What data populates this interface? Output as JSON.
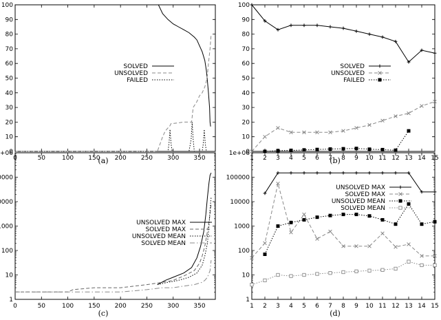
{
  "chart_data": [
    {
      "id": "a",
      "type": "line",
      "caption": "(a)",
      "xticks": [
        "0",
        "50",
        "100",
        "150",
        "200",
        "250",
        "300",
        "350"
      ],
      "yticks": [
        "0",
        "10",
        "20",
        "30",
        "40",
        "50",
        "60",
        "70",
        "80",
        "90",
        "100"
      ],
      "xlim": [
        0,
        380
      ],
      "ylim": [
        0,
        100
      ],
      "yscale": "linear",
      "legend_position": "center-right",
      "series": [
        {
          "name": "SOLVED",
          "style": "solid",
          "color": "#000000",
          "x": [
            0,
            100,
            200,
            272,
            280,
            290,
            300,
            310,
            320,
            330,
            340,
            345,
            350,
            355,
            360,
            363,
            365,
            367,
            369,
            370,
            371
          ],
          "y": [
            100,
            100,
            100,
            100,
            94,
            90,
            87,
            85,
            83,
            81,
            78,
            76,
            72,
            68,
            62,
            55,
            48,
            40,
            30,
            20,
            17
          ]
        },
        {
          "name": "UNSOLVED",
          "style": "dashed",
          "color": "#888888",
          "x": [
            0,
            200,
            270,
            272,
            275,
            280,
            285,
            290,
            293,
            296,
            300,
            320,
            335,
            338,
            345,
            350,
            355,
            360,
            363,
            365,
            367,
            370,
            372
          ],
          "y": [
            0,
            0,
            0,
            2,
            5,
            10,
            14,
            16,
            17,
            19,
            19,
            20,
            20,
            30,
            34,
            38,
            40,
            44,
            48,
            52,
            60,
            70,
            80
          ]
        },
        {
          "name": "FAILED",
          "style": "dotted",
          "color": "#000000",
          "x": [
            0,
            290,
            292,
            294,
            296,
            298,
            330,
            334,
            336,
            338,
            340,
            355,
            357,
            359,
            361,
            363,
            380
          ],
          "y": [
            0,
            0,
            5,
            15,
            5,
            0,
            0,
            8,
            20,
            8,
            0,
            0,
            5,
            15,
            5,
            0,
            0
          ]
        }
      ]
    },
    {
      "id": "b",
      "type": "line",
      "caption": "(b)",
      "xticks": [
        "1",
        "2",
        "3",
        "4",
        "5",
        "6",
        "7",
        "8",
        "9",
        "10",
        "11",
        "12",
        "13",
        "14",
        "15"
      ],
      "yticks": [
        "0",
        "10",
        "20",
        "30",
        "40",
        "50",
        "60",
        "70",
        "80",
        "90",
        "100"
      ],
      "xlim": [
        1,
        15
      ],
      "ylim": [
        0,
        100
      ],
      "yscale": "linear",
      "legend_position": "center-right",
      "series": [
        {
          "name": "SOLVED",
          "style": "solid",
          "color": "#000000",
          "marker": "plus",
          "x": [
            1,
            2,
            3,
            4,
            5,
            6,
            7,
            8,
            9,
            10,
            11,
            12,
            13,
            14,
            15
          ],
          "y": [
            100,
            89,
            83,
            86,
            86,
            86,
            85,
            84,
            82,
            80,
            78,
            75,
            61,
            69,
            67
          ]
        },
        {
          "name": "UNSOLVED",
          "style": "dashed",
          "color": "#888888",
          "marker": "x",
          "x": [
            1,
            2,
            3,
            4,
            5,
            6,
            7,
            8,
            9,
            10,
            11,
            12,
            13,
            14,
            15
          ],
          "y": [
            0,
            10,
            16,
            13,
            13,
            13,
            13,
            14,
            16,
            18,
            21,
            24,
            26,
            31,
            34
          ]
        },
        {
          "name": "FAILED",
          "style": "dotted",
          "color": "#000000",
          "marker": "square",
          "x": [
            2,
            3,
            4,
            5,
            6,
            7,
            8,
            9,
            10,
            11,
            12,
            13
          ],
          "y": [
            0,
            0.5,
            0.7,
            1,
            1.3,
            1.6,
            1.8,
            2,
            1.5,
            1.2,
            0.8,
            14
          ]
        }
      ]
    },
    {
      "id": "c",
      "type": "line",
      "caption": "(c)",
      "xticks": [
        "0",
        "50",
        "100",
        "150",
        "200",
        "250",
        "300",
        "350"
      ],
      "yticks": [
        "1",
        "10",
        "100",
        "1000",
        "10000",
        "100000",
        "1e+06"
      ],
      "xlim": [
        0,
        380
      ],
      "ylim": [
        1,
        1000000
      ],
      "yscale": "log",
      "legend_position": "center-right",
      "series": [
        {
          "name": "UNSOLVED MAX",
          "style": "solid",
          "color": "#000000",
          "x": [
            270,
            285,
            300,
            320,
            335,
            345,
            352,
            358,
            362,
            365,
            368,
            370,
            372
          ],
          "y": [
            4,
            6,
            8,
            12,
            20,
            50,
            150,
            600,
            3000,
            15000,
            60000,
            120000,
            150000
          ]
        },
        {
          "name": "SOLVED MAX",
          "style": "dashed",
          "color": "#666666",
          "x": [
            0,
            100,
            110,
            150,
            200,
            250,
            280,
            300,
            320,
            340,
            350,
            355,
            360,
            365,
            370,
            372
          ],
          "y": [
            2,
            2,
            2.5,
            3,
            3,
            4,
            5,
            6,
            9,
            15,
            30,
            60,
            150,
            600,
            3000,
            8000
          ]
        },
        {
          "name": "UNSOLVED MEAN",
          "style": "dotted",
          "color": "#000000",
          "x": [
            270,
            290,
            310,
            330,
            345,
            355,
            360,
            365,
            368,
            370,
            372
          ],
          "y": [
            4,
            5,
            6,
            8,
            12,
            25,
            60,
            200,
            1000,
            5000,
            15000
          ]
        },
        {
          "name": "SOLVED MEAN",
          "style": "dashdot",
          "color": "#888888",
          "x": [
            0,
            100,
            150,
            200,
            250,
            280,
            300,
            320,
            340,
            355,
            360,
            365,
            370,
            372
          ],
          "y": [
            2,
            2,
            2,
            2,
            2.5,
            3,
            3,
            3.5,
            4,
            5,
            6,
            8,
            15,
            40
          ]
        }
      ]
    },
    {
      "id": "d",
      "type": "line",
      "caption": "(d)",
      "xticks": [
        "1",
        "2",
        "3",
        "4",
        "5",
        "6",
        "7",
        "8",
        "9",
        "10",
        "11",
        "12",
        "13",
        "14",
        "15"
      ],
      "yticks": [
        "1",
        "10",
        "100",
        "1000",
        "10000",
        "100000",
        "1e+06"
      ],
      "xlim": [
        1,
        15
      ],
      "ylim": [
        1,
        1000000
      ],
      "yscale": "log",
      "legend_position": "top-right",
      "series": [
        {
          "name": "UNSOLVED MAX",
          "style": "solid",
          "color": "#000000",
          "marker": "plus",
          "x": [
            2,
            3,
            4,
            5,
            6,
            7,
            8,
            9,
            10,
            11,
            12,
            13,
            14,
            15
          ],
          "y": [
            22000,
            150000,
            150000,
            150000,
            150000,
            150000,
            150000,
            150000,
            150000,
            150000,
            150000,
            150000,
            25000,
            25000
          ]
        },
        {
          "name": "SOLVED MAX",
          "style": "dashed",
          "color": "#888888",
          "marker": "x",
          "x": [
            1,
            2,
            3,
            4,
            5,
            6,
            7,
            8,
            9,
            10,
            11,
            12,
            13,
            14,
            15
          ],
          "y": [
            50,
            200,
            55000,
            550,
            3000,
            300,
            600,
            150,
            150,
            150,
            500,
            140,
            180,
            60,
            60
          ]
        },
        {
          "name": "UNSOLVED MEAN",
          "style": "dotted",
          "color": "#000000",
          "marker": "filled-square",
          "x": [
            2,
            3,
            4,
            5,
            6,
            7,
            8,
            9,
            10,
            11,
            12,
            13,
            14,
            15
          ],
          "y": [
            70,
            1000,
            1400,
            1800,
            2300,
            2700,
            3000,
            3000,
            2600,
            1800,
            1200,
            8000,
            1200,
            1500
          ]
        },
        {
          "name": "SOLVED MEAN",
          "style": "dotted",
          "color": "#888888",
          "marker": "open-square",
          "x": [
            1,
            2,
            3,
            4,
            5,
            6,
            7,
            8,
            9,
            10,
            11,
            12,
            13,
            14,
            15
          ],
          "y": [
            4,
            6,
            10,
            9,
            10,
            11,
            12,
            13,
            14,
            15,
            16,
            18,
            35,
            25,
            25
          ]
        }
      ]
    }
  ]
}
